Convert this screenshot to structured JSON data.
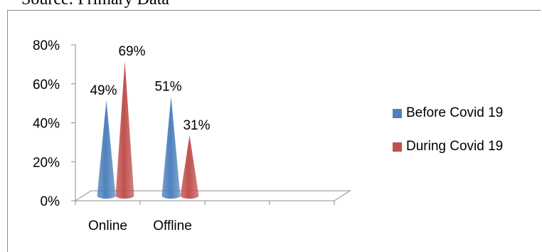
{
  "source_text": "Source: Primary Data",
  "chart_data": {
    "type": "bar",
    "bar_shape": "cone",
    "three_d": true,
    "categories": [
      "Online",
      "Offline"
    ],
    "series": [
      {
        "name": "Before Covid 19",
        "values": [
          49,
          51
        ],
        "labels": [
          "49%",
          "51%"
        ],
        "color": "#4F81BD"
      },
      {
        "name": "During Covid 19",
        "values": [
          69,
          31
        ],
        "labels": [
          "69%",
          "31%"
        ],
        "color": "#C0504D"
      }
    ],
    "y_ticks": [
      "0%",
      "20%",
      "40%",
      "60%",
      "80%"
    ],
    "ylim": [
      0,
      80
    ],
    "legend_position": "right",
    "grid": false
  }
}
